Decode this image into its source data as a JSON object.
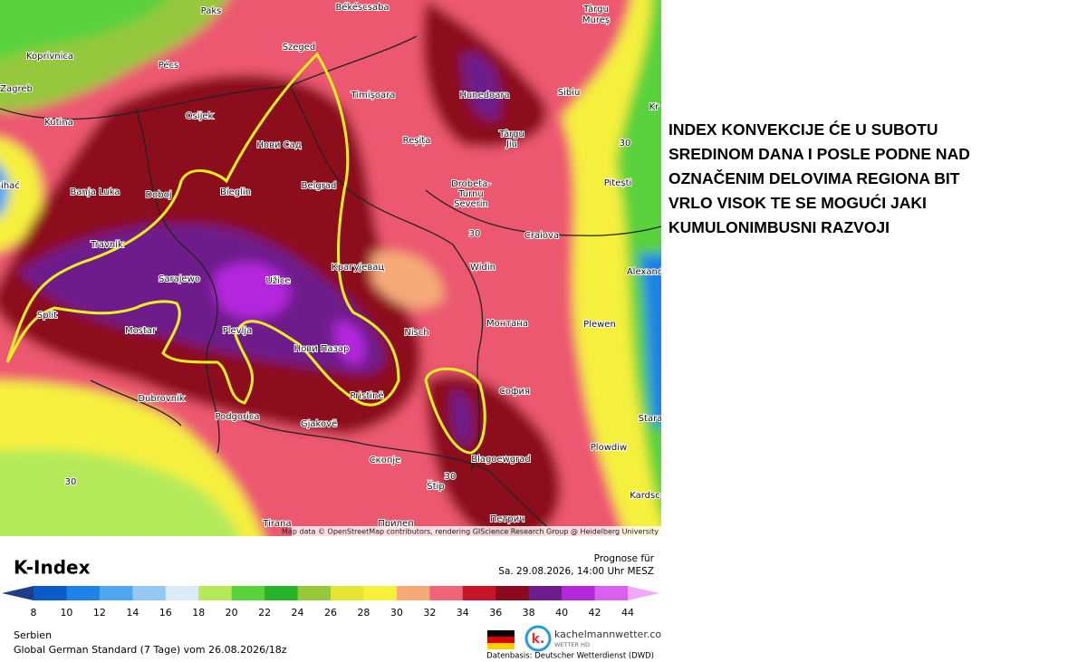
{
  "map": {
    "labels": [
      "Paks",
      "Békéscsaba",
      "Târgu",
      "Mureș",
      "Koprivnica",
      "Pécs",
      "Szeged",
      "Zagreb",
      "Timișoara",
      "Hunedoara",
      "Sibiu",
      "Kr",
      "Kutina",
      "Osijek",
      "Нови Сад",
      "Reșița",
      "Târgu",
      "Jiu",
      "30",
      "Bihać",
      "Banja Luka",
      "Doboj",
      "Bieglin",
      "Belgrad",
      "Drobeta-",
      "Turnu",
      "Severin",
      "Pitești",
      "Craiova",
      "30",
      "Travnik",
      "Крагујевац",
      "Widin",
      "Alexand",
      "Sarajewo",
      "Užice",
      "Split",
      "Монтана",
      "Plewen",
      "Mostar",
      "Plevlja",
      "Nisch",
      "Нови Пазар",
      "Dubrovnik",
      "Pristinë",
      "София",
      "Podgorica",
      "Gjakovë",
      "Stara",
      "Plowdiw",
      "Blagoewgrad",
      "Скопје",
      "30",
      "Štip",
      "30",
      "Kardsc",
      "Tirana",
      "Петрич",
      "Прилеп"
    ],
    "credit": "Map data © OpenStreetMap contributors, rendering GIScience Research Group @ Heidelberg University"
  },
  "annotation": [
    "INDEX KONVEKCIJE ĆE U SUBOTU",
    "SREDINOM DANA I POSLE PODNE NAD",
    "OZNAČENIM DELOVIMA REGIONA BIT",
    "VRLO VISOK TE SE MOGUĆI JAKI",
    "KUMULONIMBUSNI RAZVOJI"
  ],
  "legend": {
    "title": "K-Index",
    "ticks": [
      8,
      10,
      12,
      14,
      16,
      18,
      20,
      22,
      24,
      26,
      28,
      30,
      32,
      34,
      36,
      38,
      40,
      42,
      44
    ],
    "colors": [
      "#1e3c8c",
      "#0a5ac8",
      "#1e82e6",
      "#50a5f0",
      "#96c8f5",
      "#dcebf8",
      "#b4ea5a",
      "#5ad23c",
      "#28b428",
      "#96c83c",
      "#e6e632",
      "#f5f03c",
      "#f5aa78",
      "#f06478",
      "#c81428",
      "#8c0a1e",
      "#6e1e8c",
      "#b428dc",
      "#d860ec",
      "#eeaaf5"
    ]
  },
  "forecast": {
    "label": "Prognose für",
    "date": "Sa. 29.08.2026, 14:00 Uhr MESZ"
  },
  "footer": {
    "region": "Serbien",
    "model": "Global German Standard (7 Tage) vom 26.08.2026/18z",
    "brand": "kachelmannwetter.com",
    "brand_sub": "WETTER HD",
    "logo": "k.",
    "source": "Datenbasis: Deutscher Wetterdienst (DWD)"
  }
}
